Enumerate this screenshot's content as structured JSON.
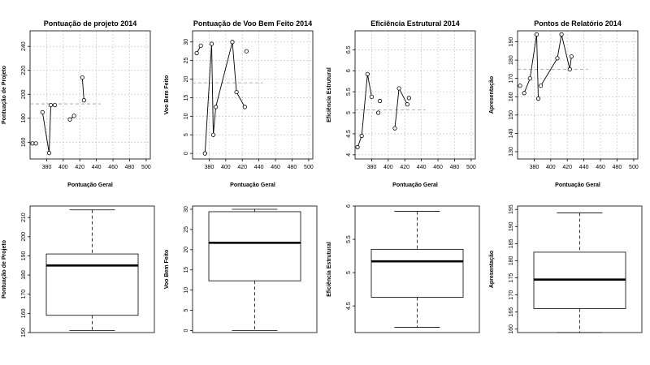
{
  "chart_data": [
    {
      "type": "line",
      "title": "Pontuação de projeto 2014",
      "xlabel": "Pontuação Geral",
      "ylabel": "Pontuação de Projeto",
      "xlim": [
        360,
        505
      ],
      "ylim": [
        146,
        253
      ],
      "xticks": [
        380,
        400,
        420,
        440,
        460,
        480,
        500
      ],
      "yticks": [
        160,
        180,
        200,
        220,
        240
      ],
      "grid": true,
      "x": [
        363,
        367,
        375,
        383,
        385,
        390,
        408,
        413,
        423,
        425
      ],
      "y": [
        159,
        159,
        185,
        151,
        191,
        191,
        179,
        182,
        214,
        195
      ],
      "segments": [
        [
          0,
          1
        ],
        [
          2,
          3
        ],
        [
          3,
          4
        ],
        [
          4,
          5
        ],
        [
          6,
          7
        ],
        [
          8,
          9
        ]
      ],
      "reference_line": {
        "y": 192,
        "x": [
          360,
          445
        ]
      }
    },
    {
      "type": "line",
      "title": "Pontuação de Voo Bem Feito 2014",
      "xlabel": "Pontuação Geral",
      "ylabel": "Voo Bem Feito",
      "xlim": [
        360,
        505
      ],
      "ylim": [
        -1.5,
        33
      ],
      "xticks": [
        380,
        400,
        420,
        440,
        460,
        480,
        500
      ],
      "yticks": [
        0,
        5,
        10,
        15,
        20,
        25,
        30
      ],
      "grid": true,
      "x": [
        365,
        370,
        375,
        383,
        385,
        388,
        408,
        413,
        423,
        425
      ],
      "y": [
        27,
        29,
        0,
        29.5,
        5,
        12.5,
        30,
        16.5,
        12.5,
        27.5
      ],
      "segments": [
        [
          0,
          1
        ],
        [
          2,
          3
        ],
        [
          3,
          4
        ],
        [
          4,
          5
        ],
        [
          5,
          6
        ],
        [
          6,
          7
        ],
        [
          7,
          8
        ]
      ],
      "reference_line": {
        "y": 19,
        "x": [
          360,
          445
        ]
      }
    },
    {
      "type": "line",
      "title": "Eficiência Estrutural 2014",
      "xlabel": "Pontuação Geral",
      "ylabel": "Eficiência Estrutural",
      "xlim": [
        360,
        505
      ],
      "ylim": [
        3.9,
        6.95
      ],
      "xticks": [
        380,
        400,
        420,
        440,
        460,
        480,
        500
      ],
      "yticks": [
        4.0,
        4.5,
        5.0,
        5.5,
        6.0,
        6.5
      ],
      "grid": true,
      "x": [
        363,
        368,
        375,
        380,
        388,
        390,
        408,
        413,
        423,
        425
      ],
      "y": [
        4.18,
        4.45,
        5.92,
        5.38,
        5.0,
        5.28,
        4.63,
        5.58,
        5.2,
        5.35
      ],
      "segments": [
        [
          0,
          1
        ],
        [
          1,
          2
        ],
        [
          2,
          3
        ],
        [
          6,
          7
        ],
        [
          7,
          8
        ]
      ],
      "reference_line": {
        "y": 5.07,
        "x": [
          360,
          445
        ]
      }
    },
    {
      "type": "line",
      "title": "Pontos de Relatório 2014",
      "xlabel": "Pontuação Geral",
      "ylabel": "Apresentação",
      "xlim": [
        360,
        505
      ],
      "ylim": [
        126,
        196
      ],
      "xticks": [
        380,
        400,
        420,
        440,
        460,
        480,
        500
      ],
      "yticks": [
        130,
        140,
        150,
        160,
        170,
        180,
        190
      ],
      "grid": true,
      "x": [
        363,
        368,
        375,
        383,
        385,
        388,
        408,
        413,
        423,
        425
      ],
      "y": [
        166,
        162,
        170,
        194,
        159,
        166,
        181,
        194,
        175,
        182
      ],
      "segments": [
        [
          1,
          2
        ],
        [
          2,
          3
        ],
        [
          3,
          4
        ],
        [
          5,
          6
        ],
        [
          6,
          7
        ],
        [
          7,
          8
        ],
        [
          8,
          9
        ]
      ],
      "reference_line": {
        "y": 175,
        "x": [
          360,
          445
        ]
      }
    },
    {
      "type": "box",
      "ylabel": "Pontuação de Projeto",
      "ylim": [
        150,
        216
      ],
      "yticks": [
        150,
        160,
        170,
        180,
        190,
        200,
        210
      ],
      "stats": {
        "min": 151,
        "q1": 159,
        "median": 185,
        "q3": 191,
        "max": 214
      }
    },
    {
      "type": "box",
      "ylabel": "Voo Bem Feito",
      "ylim": [
        -0.5,
        30.8
      ],
      "yticks": [
        0,
        5,
        10,
        15,
        20,
        25,
        30
      ],
      "stats": {
        "min": 0,
        "q1": 12.3,
        "median": 21.7,
        "q3": 29.4,
        "max": 30
      }
    },
    {
      "type": "box",
      "ylabel": "Eficiência Estrutural",
      "ylim": [
        4.1,
        6.0
      ],
      "yticks": [
        4.5,
        5.0,
        5.5,
        6.0
      ],
      "stats": {
        "min": 4.18,
        "q1": 4.63,
        "median": 5.17,
        "q3": 5.35,
        "max": 5.92
      }
    },
    {
      "type": "box",
      "ylabel": "Apresentação",
      "ylim": [
        159,
        196
      ],
      "yticks": [
        160,
        165,
        170,
        175,
        180,
        185,
        190,
        195
      ],
      "stats": {
        "min": 159,
        "q1": 166,
        "median": 174.5,
        "q3": 182.5,
        "max": 194
      }
    }
  ]
}
